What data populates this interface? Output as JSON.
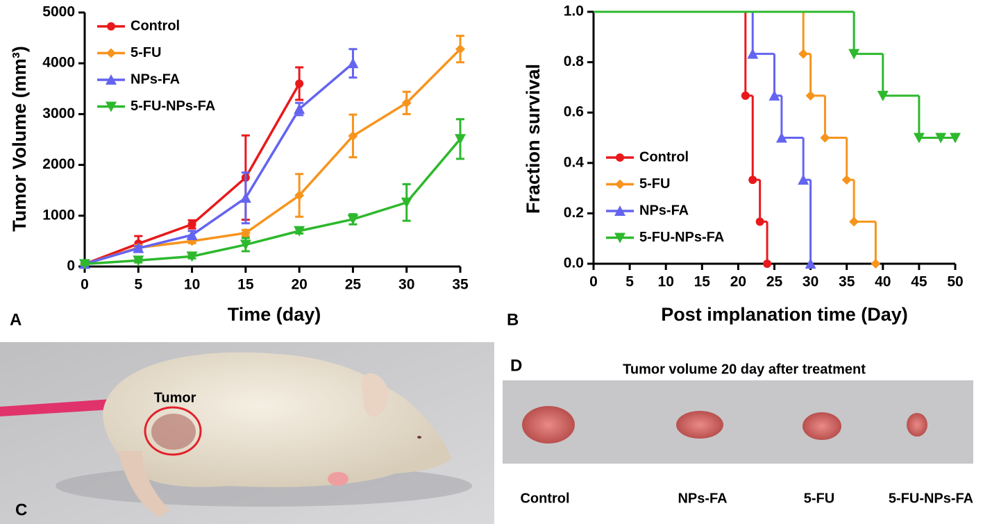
{
  "chart_data": [
    {
      "type": "line",
      "xlabel": "Time (day)",
      "ylabel": "Tumor Volume (mm³)",
      "x": [
        0,
        5,
        10,
        15,
        20,
        25,
        30,
        35
      ],
      "xlim": [
        0,
        35
      ],
      "xticks": [
        0,
        5,
        10,
        15,
        20,
        25,
        30,
        35
      ],
      "ylim": [
        0,
        5000
      ],
      "yticks": [
        0,
        1000,
        2000,
        3000,
        4000,
        5000
      ],
      "legend": "upper left",
      "series": [
        {
          "name": "Control",
          "color": "#e8191c",
          "marker": "circle",
          "values": [
            50,
            450,
            830,
            1750,
            3600,
            null,
            null,
            null
          ],
          "errors": [
            30,
            150,
            80,
            830,
            320,
            null,
            null,
            null
          ]
        },
        {
          "name": "5-FU",
          "color": "#f7941d",
          "marker": "diamond",
          "values": [
            50,
            370,
            500,
            660,
            1400,
            2570,
            3220,
            4280
          ],
          "errors": [
            30,
            50,
            40,
            60,
            420,
            420,
            220,
            260
          ]
        },
        {
          "name": "NPs-FA",
          "color": "#6464f0",
          "marker": "triangle-up",
          "values": [
            50,
            360,
            620,
            1350,
            3100,
            4000,
            null,
            null
          ],
          "errors": [
            30,
            40,
            80,
            500,
            120,
            280,
            null,
            null
          ]
        },
        {
          "name": "5-FU-NPs-FA",
          "color": "#2db82d",
          "marker": "triangle-down",
          "values": [
            50,
            120,
            200,
            430,
            700,
            930,
            1260,
            2510
          ],
          "errors": [
            20,
            40,
            40,
            130,
            50,
            100,
            360,
            390
          ]
        }
      ]
    },
    {
      "type": "step",
      "xlabel": "Post implanation time (Day)",
      "ylabel": "Fraction survival",
      "xlim": [
        0,
        50
      ],
      "xticks": [
        0,
        5,
        10,
        15,
        20,
        25,
        30,
        35,
        40,
        45,
        50
      ],
      "ylim": [
        0,
        1
      ],
      "yticks": [
        {
          "value": 0,
          "label": "0.0"
        },
        0.2,
        0.4,
        0.6,
        0.8,
        {
          "value": 1,
          "label": "1.0"
        }
      ],
      "legend": "lower left",
      "series": [
        {
          "name": "Control",
          "color": "#e8191c",
          "marker": "circle",
          "x": [
            0,
            21,
            22,
            23,
            24
          ],
          "values": [
            1,
            0.667,
            0.333,
            0.167,
            0
          ]
        },
        {
          "name": "5-FU",
          "color": "#f7941d",
          "marker": "diamond",
          "x": [
            0,
            29,
            30,
            32,
            35,
            36,
            39
          ],
          "values": [
            1,
            0.833,
            0.667,
            0.5,
            0.333,
            0.167,
            0
          ]
        },
        {
          "name": "NPs-FA",
          "color": "#6464f0",
          "marker": "triangle-up",
          "x": [
            0,
            22,
            25,
            26,
            29,
            30
          ],
          "values": [
            1,
            0.833,
            0.667,
            0.5,
            0.333,
            0
          ]
        },
        {
          "name": "5-FU-NPs-FA",
          "color": "#2db82d",
          "marker": "triangle-down",
          "x": [
            0,
            36,
            40,
            45,
            48,
            50
          ],
          "values": [
            1,
            0.833,
            0.667,
            0.5,
            0.5,
            0.5
          ]
        }
      ]
    }
  ],
  "panels": {
    "labels": [
      "A",
      "B",
      "C",
      "D"
    ]
  },
  "photo_c": {
    "annotation": "Tumor"
  },
  "photo_d": {
    "title": "Tumor volume 20 day after treatment",
    "labels": [
      "Control",
      "NPs-FA",
      "5-FU",
      "5-FU-NPs-FA"
    ]
  }
}
